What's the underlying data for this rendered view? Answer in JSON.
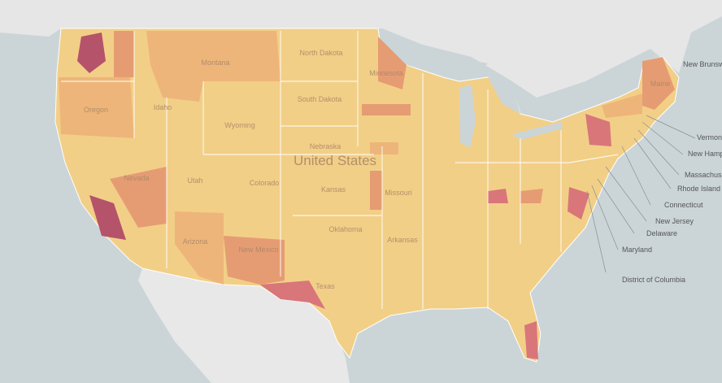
{
  "map": {
    "country_label": "United States",
    "state_labels": [
      "Montana",
      "North Dakota",
      "South Dakota",
      "Minnesota",
      "Wyoming",
      "Nebraska",
      "Kansas",
      "Oregon",
      "Idaho",
      "Nevada",
      "Utah",
      "Colorado",
      "Arizona",
      "New Mexico",
      "Oklahoma",
      "Texas",
      "Missouri",
      "Arkansas",
      "Maine"
    ],
    "callout_labels": [
      "Vermont",
      "New Hampshire",
      "Massachusetts",
      "Rhode Island",
      "Connecticut",
      "New Jersey",
      "Delaware",
      "Maryland",
      "District of Columbia"
    ],
    "neighbor_labels": [
      "New Brunswick"
    ]
  }
}
